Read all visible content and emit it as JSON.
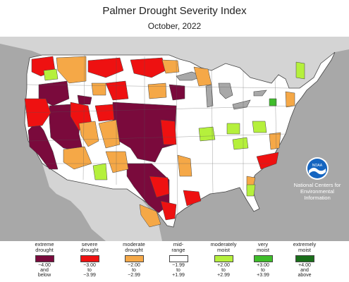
{
  "title": "Palmer Drought Severity Index",
  "subtitle": "October, 2022",
  "organization": {
    "lines": [
      "National Centers for",
      "Environmental",
      "Information"
    ],
    "logo_text": "NOAA"
  },
  "colors": {
    "extreme": "#7a0a3c",
    "severe": "#ee1111",
    "moderate": "#f5a847",
    "mid": "#ffffff",
    "moist_mod": "#b5f03c",
    "moist_very": "#3fbe2a",
    "moist_ext": "#1a6f1a",
    "ocean": "#a8a8a8",
    "neighbor": "#d4d4d4",
    "border": "#444444"
  },
  "legend": [
    {
      "label": [
        "extreme",
        "drought"
      ],
      "range": [
        "−4.00",
        "and",
        "below"
      ],
      "color": "#7a0a3c"
    },
    {
      "label": [
        "severe",
        "drought"
      ],
      "range": [
        "−3.00",
        "to",
        "−3.99"
      ],
      "color": "#ee1111"
    },
    {
      "label": [
        "moderate",
        "drought"
      ],
      "range": [
        "−2.00",
        "to",
        "−2.99"
      ],
      "color": "#f5a847"
    },
    {
      "label": [
        "mid-",
        "range"
      ],
      "range": [
        "−1.99",
        "to",
        "+1.99"
      ],
      "color": "#ffffff"
    },
    {
      "label": [
        "moderately",
        "moist"
      ],
      "range": [
        "+2.00",
        "to",
        "+2.99"
      ],
      "color": "#b5f03c"
    },
    {
      "label": [
        "very",
        "moist"
      ],
      "range": [
        "+3.00",
        "to",
        "+3.99"
      ],
      "color": "#3fbe2a"
    },
    {
      "label": [
        "extremely",
        "moist"
      ],
      "range": [
        "+4.00",
        "and",
        "above"
      ],
      "color": "#1a6f1a"
    }
  ]
}
